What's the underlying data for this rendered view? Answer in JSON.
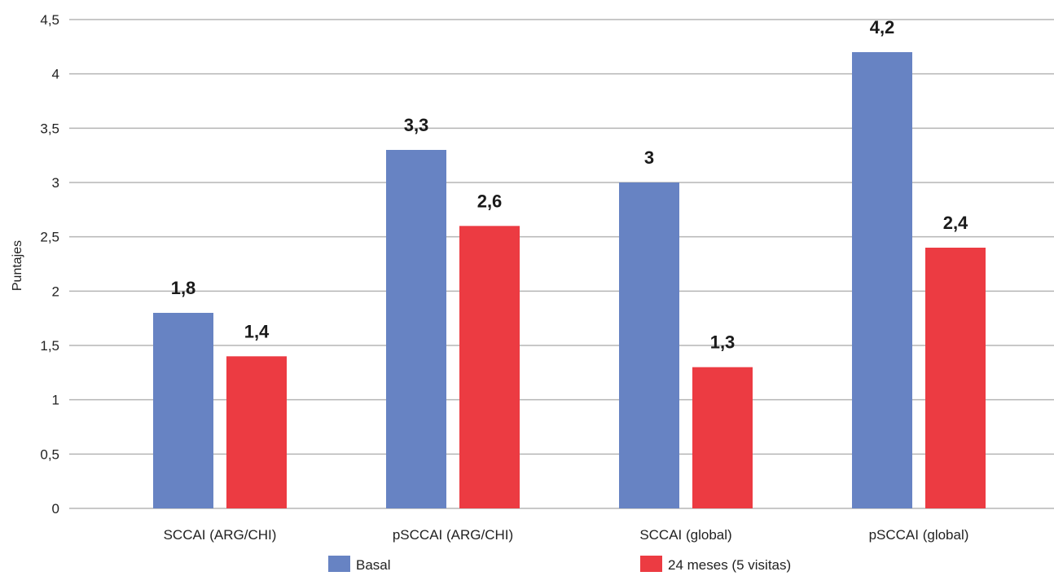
{
  "chart_data": {
    "type": "bar",
    "title": "",
    "xlabel": "",
    "ylabel": "Puntajes",
    "ylim": [
      0,
      4.5
    ],
    "yticks": [
      "0",
      "0,5",
      "1",
      "1,5",
      "2",
      "2,5",
      "3",
      "3,5",
      "4",
      "4,5"
    ],
    "grid": true,
    "legend_position": "bottom",
    "categories": [
      "SCCAI (ARG/CHI)",
      "pSCCAI (ARG/CHI)",
      "SCCAI (global)",
      "pSCCAI (global)"
    ],
    "series": [
      {
        "name": "Basal",
        "color": "#6783c3",
        "values": [
          1.8,
          3.3,
          3.0,
          4.2
        ],
        "labels": [
          "1,8",
          "3,3",
          "3",
          "4,2"
        ]
      },
      {
        "name": "24 meses (5 visitas)",
        "color": "#ec3b42",
        "values": [
          1.4,
          2.6,
          1.3,
          2.4
        ],
        "labels": [
          "1,4",
          "2,6",
          "1,3",
          "2,4"
        ]
      }
    ]
  }
}
